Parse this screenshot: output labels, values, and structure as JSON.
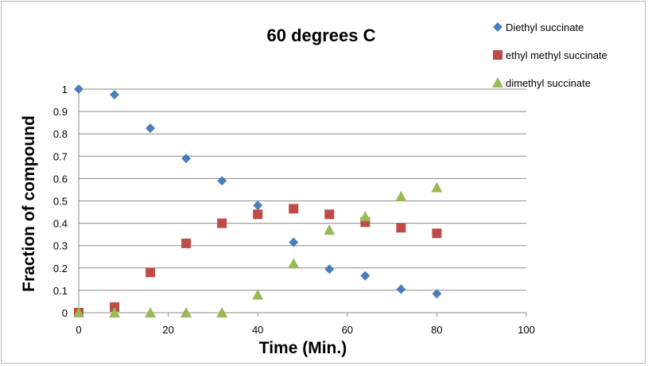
{
  "chart_data": {
    "type": "scatter",
    "title": "60 degrees C",
    "xlabel": "Time (Min.)",
    "ylabel": "Fraction of compound",
    "xlim": [
      0,
      100
    ],
    "ylim": [
      0,
      1
    ],
    "x_ticks": [
      "0",
      "20",
      "40",
      "60",
      "80",
      "100"
    ],
    "y_ticks": [
      "0",
      "0.1",
      "0.2",
      "0.3",
      "0.4",
      "0.5",
      "0.6",
      "0.7",
      "0.8",
      "0.9",
      "1"
    ],
    "grid": "horizontal",
    "legend_position": "top-right",
    "series": [
      {
        "name": "Diethyl succinate",
        "marker": "diamond",
        "color": "#4a7ebb",
        "x": [
          0,
          8,
          16,
          24,
          32,
          40,
          48,
          56,
          64,
          72,
          80
        ],
        "y": [
          1.0,
          0.975,
          0.825,
          0.69,
          0.59,
          0.48,
          0.315,
          0.195,
          0.165,
          0.105,
          0.085
        ]
      },
      {
        "name": "ethyl methyl succinate",
        "marker": "square",
        "color": "#be4b48",
        "x": [
          0,
          8,
          16,
          24,
          32,
          40,
          48,
          56,
          64,
          72,
          80
        ],
        "y": [
          0.0,
          0.025,
          0.18,
          0.31,
          0.4,
          0.44,
          0.465,
          0.44,
          0.405,
          0.38,
          0.355
        ]
      },
      {
        "name": "dimethyl succinate",
        "marker": "triangle",
        "color": "#98b954",
        "x": [
          0,
          8,
          16,
          24,
          32,
          40,
          48,
          56,
          64,
          72,
          80
        ],
        "y": [
          0.0,
          0.0,
          0.0,
          0.0,
          0.0,
          0.08,
          0.22,
          0.37,
          0.43,
          0.52,
          0.56
        ]
      }
    ]
  }
}
